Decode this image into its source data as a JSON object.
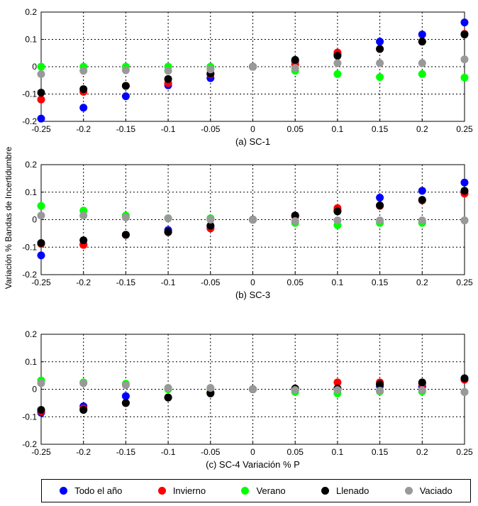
{
  "figure": {
    "ylabel": "Variación % Bandas de Incertidumbre",
    "legend": [
      {
        "name": "Todo el año",
        "color": "#0000ff"
      },
      {
        "name": "Invierno",
        "color": "#ff0000"
      },
      {
        "name": "Verano",
        "color": "#00ff00"
      },
      {
        "name": "Llenado",
        "color": "#000000"
      },
      {
        "name": "Vaciado",
        "color": "#999999"
      }
    ]
  },
  "chart_data": [
    {
      "type": "scatter",
      "title": "(a) SC-1",
      "x": [
        -0.25,
        -0.2,
        -0.15,
        -0.1,
        -0.05,
        0,
        0.05,
        0.1,
        0.15,
        0.2,
        0.25
      ],
      "xlim": [
        -0.25,
        0.25
      ],
      "ylim": [
        -0.2,
        0.2
      ],
      "xticks": [
        "-0.25",
        "-0.2",
        "-0.15",
        "-0.1",
        "-0.05",
        "0",
        "0.05",
        "0.1",
        "0.15",
        "0.2",
        "0.25"
      ],
      "yticks": [
        "-0.2",
        "-0.1",
        "0",
        "0.1",
        "0.2"
      ],
      "series": [
        {
          "name": "Todo el año",
          "values": [
            -0.19,
            -0.15,
            -0.108,
            -0.068,
            -0.042,
            0,
            0.02,
            0.045,
            0.092,
            0.118,
            0.162
          ]
        },
        {
          "name": "Invierno",
          "values": [
            -0.12,
            -0.092,
            -0.07,
            -0.06,
            -0.028,
            0,
            0.008,
            0.052,
            0.065,
            0.092,
            0.12
          ]
        },
        {
          "name": "Verano",
          "values": [
            0,
            0,
            0,
            0,
            0,
            0,
            -0.015,
            -0.027,
            -0.038,
            -0.027,
            -0.04
          ]
        },
        {
          "name": "Llenado",
          "values": [
            -0.095,
            -0.082,
            -0.07,
            -0.045,
            -0.025,
            0,
            0.025,
            0.04,
            0.065,
            0.092,
            0.118
          ]
        },
        {
          "name": "Vaciado",
          "values": [
            -0.027,
            -0.015,
            -0.013,
            -0.015,
            -0.01,
            0,
            -0.005,
            0.013,
            0.013,
            0.013,
            0.027
          ]
        }
      ]
    },
    {
      "type": "scatter",
      "title": "(b) SC-3",
      "x": [
        -0.25,
        -0.2,
        -0.15,
        -0.1,
        -0.05,
        0,
        0.05,
        0.1,
        0.15,
        0.2,
        0.25
      ],
      "xlim": [
        -0.25,
        0.25
      ],
      "ylim": [
        -0.2,
        0.2
      ],
      "xticks": [
        "-0.25",
        "-0.2",
        "-0.15",
        "-0.1",
        "-0.05",
        "0",
        "0.05",
        "0.1",
        "0.15",
        "0.2",
        "0.25"
      ],
      "yticks": [
        "-0.2",
        "-0.1",
        "0",
        "0.1",
        "0.2"
      ],
      "series": [
        {
          "name": "Todo el año",
          "values": [
            -0.13,
            -0.09,
            -0.055,
            -0.038,
            -0.025,
            0,
            0.015,
            0.035,
            0.08,
            0.105,
            0.135
          ]
        },
        {
          "name": "Invierno",
          "values": [
            -0.088,
            -0.092,
            -0.055,
            -0.045,
            -0.032,
            0,
            0.012,
            0.042,
            0.05,
            0.07,
            0.095
          ]
        },
        {
          "name": "Verano",
          "values": [
            0.05,
            0.033,
            0.015,
            0.005,
            0.005,
            0,
            -0.012,
            -0.02,
            -0.012,
            -0.012,
            -0.003
          ]
        },
        {
          "name": "Llenado",
          "values": [
            -0.085,
            -0.075,
            -0.055,
            -0.045,
            -0.022,
            0,
            0.015,
            0.03,
            0.052,
            0.072,
            0.105
          ]
        },
        {
          "name": "Vaciado",
          "values": [
            0.015,
            0.015,
            0.008,
            0.005,
            0,
            0,
            -0.005,
            -0.003,
            -0.003,
            -0.003,
            -0.003
          ]
        }
      ]
    },
    {
      "type": "scatter",
      "title": "(c) SC-4 Variación % P",
      "x": [
        -0.25,
        -0.2,
        -0.15,
        -0.1,
        -0.05,
        0,
        0.05,
        0.1,
        0.15,
        0.2,
        0.25
      ],
      "xlim": [
        -0.25,
        0.25
      ],
      "ylim": [
        -0.2,
        0.2
      ],
      "xticks": [
        "-0.25",
        "-0.2",
        "-0.15",
        "-0.1",
        "-0.05",
        "0",
        "0.05",
        "0.1",
        "0.15",
        "0.2",
        "0.25"
      ],
      "yticks": [
        "-0.2",
        "-0.1",
        "0",
        "0.1",
        "0.2"
      ],
      "series": [
        {
          "name": "Todo el año",
          "values": [
            -0.085,
            -0.062,
            -0.025,
            -0.03,
            -0.012,
            0,
            -0.003,
            0,
            0.012,
            0.01,
            0.035
          ]
        },
        {
          "name": "Invierno",
          "values": [
            -0.08,
            -0.07,
            -0.05,
            -0.03,
            -0.012,
            0,
            0,
            0.025,
            0.025,
            0.02,
            0.035
          ]
        },
        {
          "name": "Verano",
          "values": [
            0.032,
            0.025,
            0.02,
            0,
            0,
            0,
            -0.01,
            -0.015,
            -0.008,
            -0.008,
            -0.01
          ]
        },
        {
          "name": "Llenado",
          "values": [
            -0.075,
            -0.075,
            -0.05,
            -0.03,
            -0.015,
            0,
            0.003,
            0.003,
            0.018,
            0.025,
            0.04
          ]
        },
        {
          "name": "Vaciado",
          "values": [
            0.022,
            0.022,
            0.015,
            0.005,
            0.005,
            0,
            -0.003,
            -0.003,
            -0.005,
            -0.003,
            -0.01
          ]
        }
      ]
    }
  ]
}
